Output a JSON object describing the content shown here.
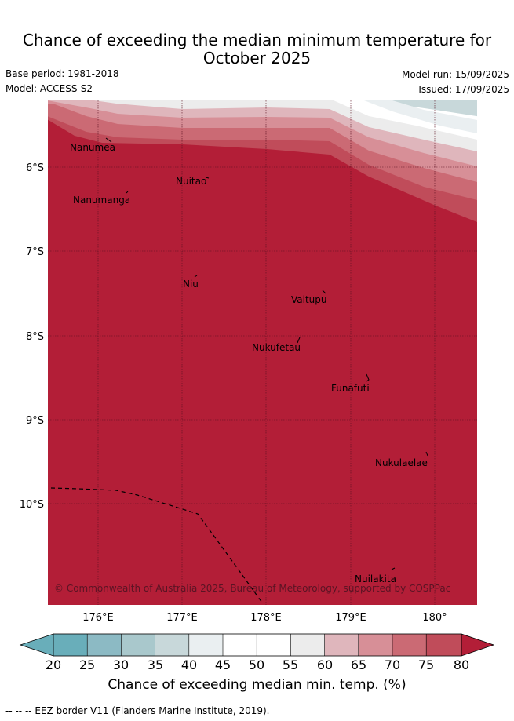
{
  "title": {
    "line1": "Chance of exceeding the median minimum temperature for",
    "line2": "October 2025"
  },
  "meta": {
    "base_period": "Base period: 1981-2018",
    "model": "Model: ACCESS-S2",
    "model_run": "Model run: 15/09/2025",
    "issued": "Issued: 17/09/2025"
  },
  "map": {
    "lon_range": [
      175.5,
      180.5
    ],
    "lat_range": [
      -11.2,
      -5.2
    ],
    "lon_ticks": [
      "176°E",
      "177°E",
      "178°E",
      "179°E",
      "180°"
    ],
    "lat_ticks": [
      "6°S",
      "7°S",
      "8°S",
      "9°S",
      "10°S"
    ],
    "places": [
      "Nanumea",
      "Nuitao",
      "Nanumanga",
      "Niu",
      "Vaitupu",
      "Nukufetau",
      "Funafuti",
      "Nukulaelae",
      "Nuilakita"
    ],
    "copyright": "© Commonwealth of Australia 2025, Bureau of Meteorology, supported by COSPPac",
    "colors": {
      "c20": "#69aeba",
      "c25": "#8cbac4",
      "c30": "#a9c8cc",
      "c35": "#c8d8da",
      "c40": "#eaeff1",
      "c45": "#ffffff",
      "c50": "#ffffff",
      "c55": "#ececec",
      "c60": "#dfb6bc",
      "c65": "#d78f97",
      "c70": "#cb6a74",
      "c75": "#c04c5a",
      "c80": "#b31e37"
    }
  },
  "colorbar": {
    "ticks": [
      "20",
      "25",
      "30",
      "35",
      "40",
      "45",
      "50",
      "55",
      "60",
      "65",
      "70",
      "75",
      "80"
    ],
    "label": "Chance of exceeding median min. temp. (%)"
  },
  "footnote": "-- -- -- EEZ border V11 (Flanders Marine Institute, 2019)."
}
